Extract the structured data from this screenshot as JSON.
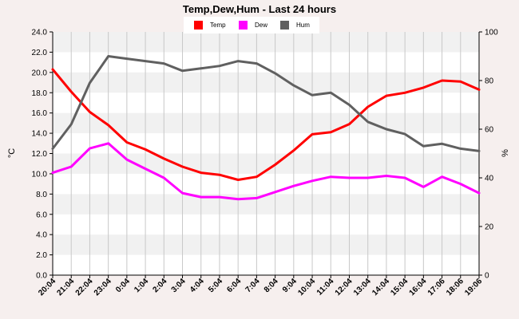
{
  "chart_data": {
    "type": "line",
    "title": "Temp,Dew,Hum - Last 24 hours",
    "ylabel_left": "°C",
    "ylabel_right": "%",
    "ylim_left": [
      0,
      24
    ],
    "ylim_right": [
      0,
      100
    ],
    "y_left_ticks": [
      "0.0",
      "2.0",
      "4.0",
      "6.0",
      "8.0",
      "10.0",
      "12.0",
      "14.0",
      "16.0",
      "18.0",
      "20.0",
      "22.0",
      "24.0"
    ],
    "y_right_ticks": [
      "0",
      "20",
      "40",
      "60",
      "80",
      "100"
    ],
    "categories": [
      "20:04",
      "21:04",
      "22:04",
      "23:04",
      "0:04",
      "1:04",
      "2:04",
      "3:04",
      "4:04",
      "5:04",
      "6:04",
      "7:04",
      "8:04",
      "9:04",
      "10:04",
      "11:04",
      "12:04",
      "13:04",
      "14:04",
      "15:04",
      "16:04",
      "17:06",
      "18:06",
      "19:06"
    ],
    "grid": true,
    "legend_position": "top",
    "series": [
      {
        "name": "Temp",
        "axis": "left",
        "color": "#ff0000",
        "values": [
          20.3,
          18.1,
          16.1,
          14.8,
          13.1,
          12.4,
          11.5,
          10.7,
          10.1,
          9.9,
          9.4,
          9.7,
          10.9,
          12.3,
          13.9,
          14.1,
          14.9,
          16.6,
          17.7,
          18.0,
          18.5,
          19.2,
          19.1,
          18.3
        ]
      },
      {
        "name": "Dew",
        "axis": "left",
        "color": "#ff00ff",
        "values": [
          10.1,
          10.7,
          12.5,
          13.0,
          11.4,
          10.5,
          9.6,
          8.1,
          7.7,
          7.7,
          7.5,
          7.6,
          8.2,
          8.8,
          9.3,
          9.7,
          9.6,
          9.6,
          9.8,
          9.6,
          8.7,
          9.7,
          9.0,
          8.1
        ]
      },
      {
        "name": "Hum",
        "axis": "right",
        "color": "#606060",
        "values": [
          52,
          62,
          79,
          90,
          89,
          88,
          87,
          84,
          85,
          86,
          88,
          87,
          83,
          78,
          74,
          75,
          70,
          63,
          60,
          58,
          53,
          54,
          52,
          51
        ]
      }
    ]
  }
}
